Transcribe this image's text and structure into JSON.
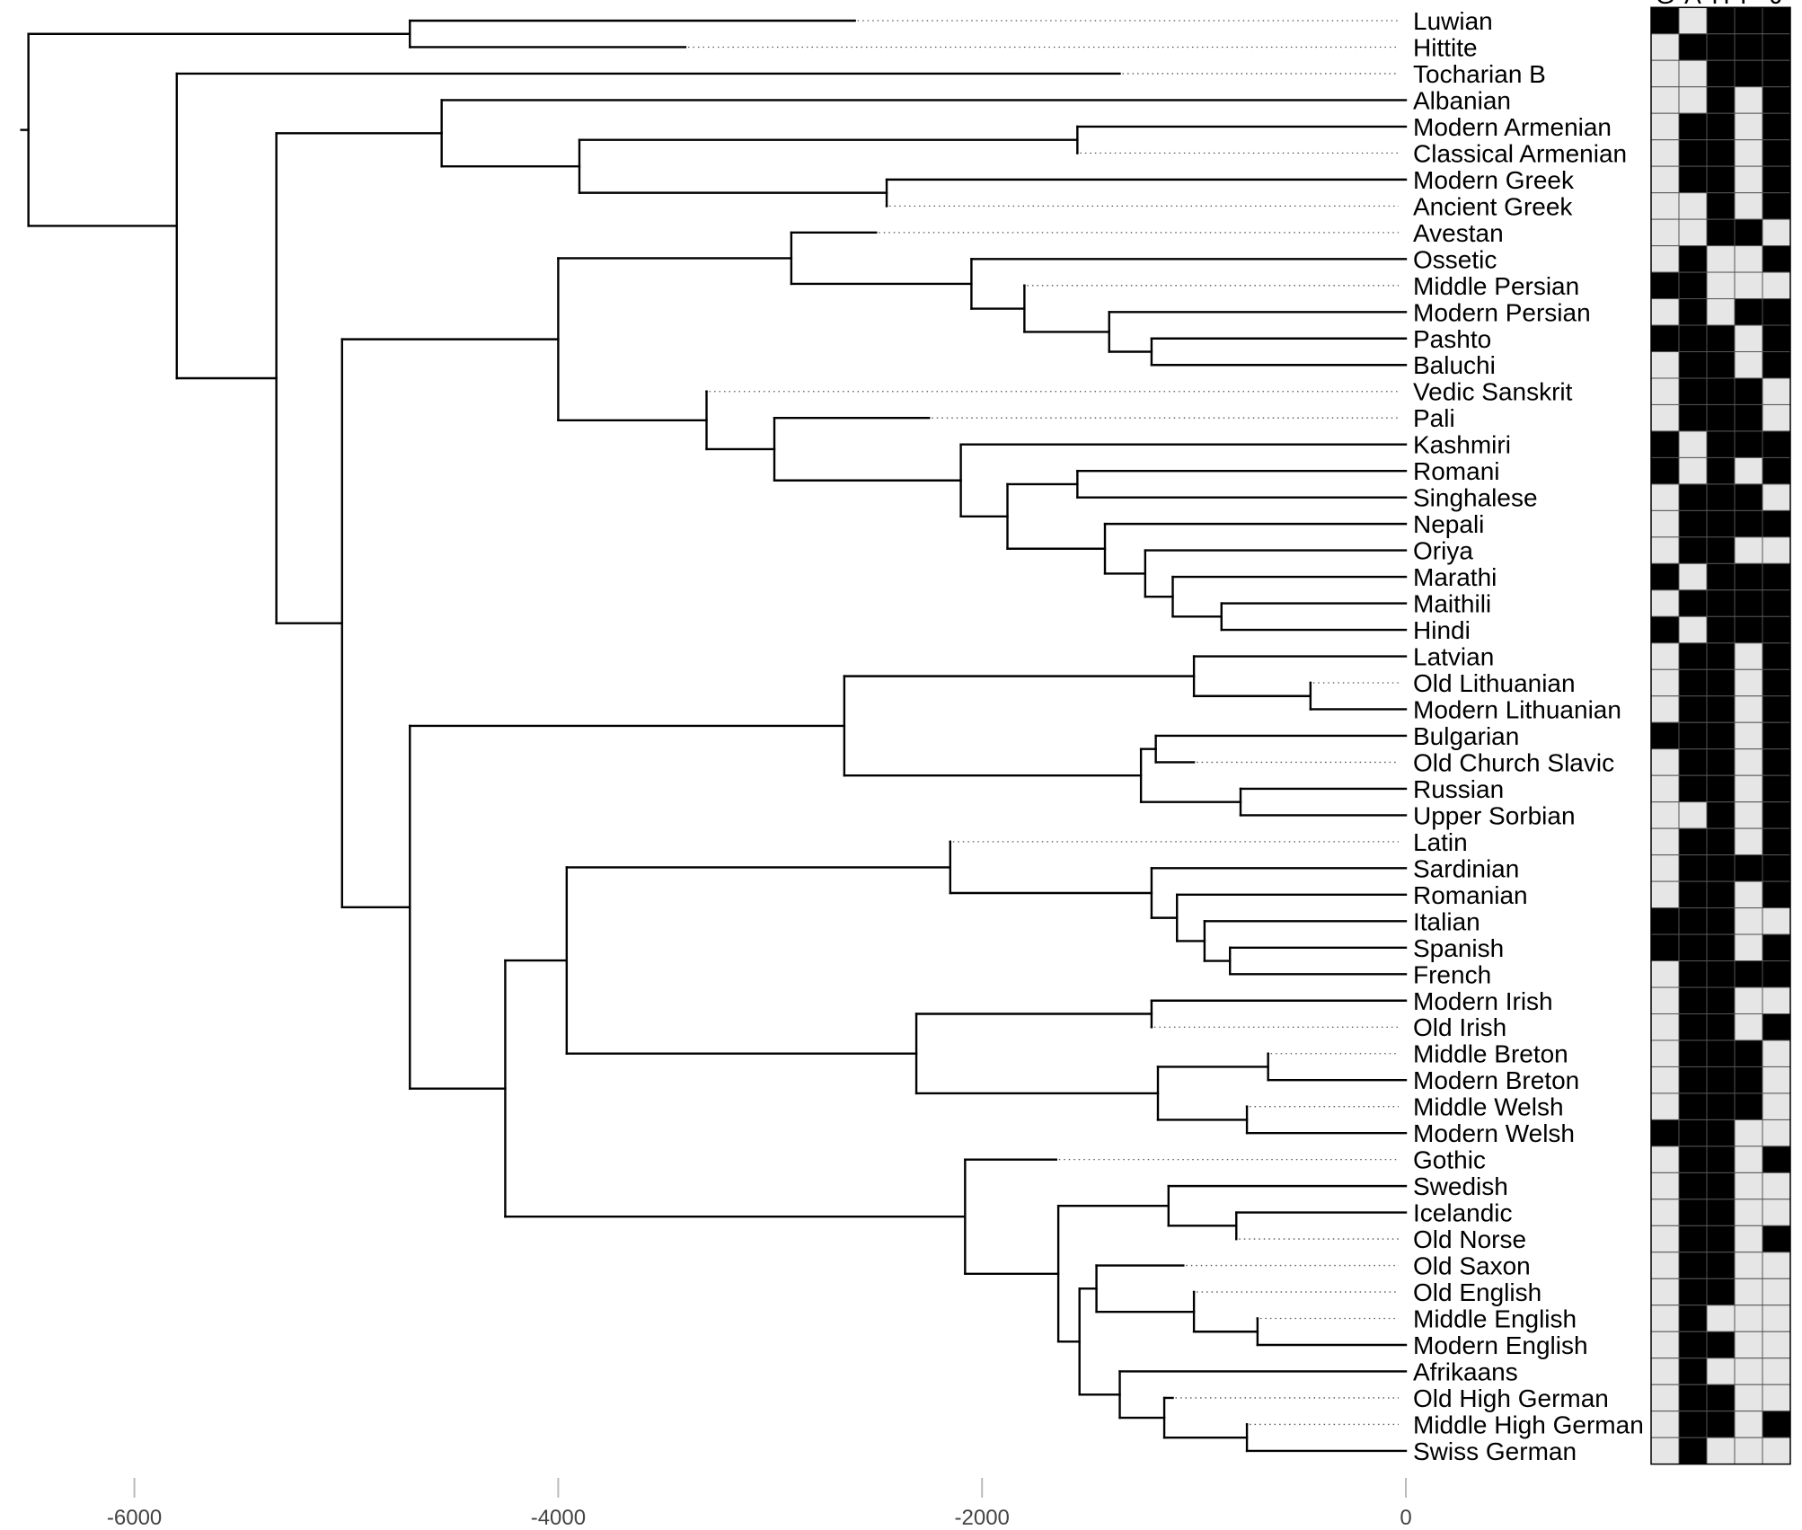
{
  "chart_data": {
    "type": "tree",
    "description_axis": "time before present (years)",
    "x_ticks": [
      -6000,
      -4000,
      -2000,
      0
    ],
    "x_tick_labels": [
      "-6000",
      "-4000",
      "-2000",
      "0"
    ],
    "xlim": [
      -6600,
      0
    ],
    "grid_header_letters": [
      "G",
      "A",
      "H",
      "P",
      "J"
    ],
    "colors": {
      "present": "#000000",
      "absent": "#e6e6e6",
      "tree": "#000000",
      "leader": "#555555"
    },
    "leaves": [
      {
        "name": "Luwian",
        "tip": -2600,
        "cells": [
          1,
          0,
          1,
          1,
          1
        ]
      },
      {
        "name": "Hittite",
        "tip": -3400,
        "cells": [
          0,
          1,
          1,
          1,
          1
        ]
      },
      {
        "name": "Tocharian B",
        "tip": -1350,
        "cells": [
          0,
          0,
          1,
          1,
          1
        ]
      },
      {
        "name": "Albanian",
        "tip": 0,
        "cells": [
          0,
          0,
          1,
          0,
          1
        ]
      },
      {
        "name": "Modern Armenian",
        "tip": 0,
        "cells": [
          0,
          1,
          1,
          0,
          1
        ]
      },
      {
        "name": "Classical Armenian",
        "tip": -1550,
        "cells": [
          0,
          1,
          1,
          0,
          1
        ]
      },
      {
        "name": "Modern Greek",
        "tip": 0,
        "cells": [
          0,
          1,
          1,
          0,
          1
        ]
      },
      {
        "name": "Ancient Greek",
        "tip": -2450,
        "cells": [
          0,
          0,
          1,
          0,
          1
        ]
      },
      {
        "name": "Avestan",
        "tip": -2500,
        "cells": [
          0,
          0,
          1,
          1,
          0
        ]
      },
      {
        "name": "Ossetic",
        "tip": 0,
        "cells": [
          0,
          1,
          0,
          0,
          1
        ]
      },
      {
        "name": "Middle Persian",
        "tip": -1800,
        "cells": [
          1,
          1,
          0,
          0,
          0
        ]
      },
      {
        "name": "Modern Persian",
        "tip": 0,
        "cells": [
          0,
          1,
          0,
          1,
          1
        ]
      },
      {
        "name": "Pashto",
        "tip": 0,
        "cells": [
          1,
          1,
          1,
          0,
          1
        ]
      },
      {
        "name": "Baluchi",
        "tip": 0,
        "cells": [
          0,
          1,
          1,
          0,
          1
        ]
      },
      {
        "name": "Vedic Sanskrit",
        "tip": -3300,
        "cells": [
          0,
          1,
          1,
          1,
          0
        ]
      },
      {
        "name": "Pali",
        "tip": -2250,
        "cells": [
          0,
          1,
          1,
          1,
          0
        ]
      },
      {
        "name": "Kashmiri",
        "tip": 0,
        "cells": [
          1,
          0,
          1,
          1,
          1
        ]
      },
      {
        "name": "Romani",
        "tip": 0,
        "cells": [
          1,
          0,
          1,
          0,
          1
        ]
      },
      {
        "name": "Singhalese",
        "tip": 0,
        "cells": [
          0,
          1,
          1,
          1,
          0
        ]
      },
      {
        "name": "Nepali",
        "tip": 0,
        "cells": [
          0,
          1,
          1,
          1,
          1
        ]
      },
      {
        "name": "Oriya",
        "tip": 0,
        "cells": [
          0,
          1,
          1,
          0,
          0
        ]
      },
      {
        "name": "Marathi",
        "tip": 0,
        "cells": [
          1,
          0,
          1,
          1,
          1
        ]
      },
      {
        "name": "Maithili",
        "tip": 0,
        "cells": [
          0,
          1,
          1,
          1,
          1
        ]
      },
      {
        "name": "Hindi",
        "tip": 0,
        "cells": [
          1,
          0,
          1,
          1,
          1
        ]
      },
      {
        "name": "Latvian",
        "tip": 0,
        "cells": [
          0,
          1,
          1,
          0,
          1
        ]
      },
      {
        "name": "Old Lithuanian",
        "tip": -450,
        "cells": [
          0,
          1,
          1,
          0,
          1
        ]
      },
      {
        "name": "Modern Lithuanian",
        "tip": 0,
        "cells": [
          0,
          1,
          1,
          0,
          1
        ]
      },
      {
        "name": "Bulgarian",
        "tip": 0,
        "cells": [
          1,
          1,
          1,
          0,
          1
        ]
      },
      {
        "name": "Old Church Slavic",
        "tip": -1000,
        "cells": [
          0,
          1,
          1,
          0,
          1
        ]
      },
      {
        "name": "Russian",
        "tip": 0,
        "cells": [
          0,
          1,
          1,
          0,
          1
        ]
      },
      {
        "name": "Upper Sorbian",
        "tip": 0,
        "cells": [
          0,
          0,
          1,
          0,
          1
        ]
      },
      {
        "name": "Latin",
        "tip": -2150,
        "cells": [
          0,
          1,
          1,
          0,
          1
        ]
      },
      {
        "name": "Sardinian",
        "tip": 0,
        "cells": [
          0,
          1,
          1,
          1,
          1
        ]
      },
      {
        "name": "Romanian",
        "tip": 0,
        "cells": [
          0,
          1,
          1,
          0,
          1
        ]
      },
      {
        "name": "Italian",
        "tip": 0,
        "cells": [
          1,
          1,
          1,
          0,
          0
        ]
      },
      {
        "name": "Spanish",
        "tip": 0,
        "cells": [
          1,
          1,
          1,
          0,
          1
        ]
      },
      {
        "name": "French",
        "tip": 0,
        "cells": [
          0,
          1,
          1,
          1,
          1
        ]
      },
      {
        "name": "Modern Irish",
        "tip": 0,
        "cells": [
          0,
          1,
          1,
          0,
          0
        ]
      },
      {
        "name": "Old Irish",
        "tip": -1200,
        "cells": [
          0,
          1,
          1,
          0,
          1
        ]
      },
      {
        "name": "Middle Breton",
        "tip": -650,
        "cells": [
          0,
          1,
          1,
          1,
          0
        ]
      },
      {
        "name": "Modern Breton",
        "tip": 0,
        "cells": [
          0,
          1,
          1,
          1,
          0
        ]
      },
      {
        "name": "Middle Welsh",
        "tip": -750,
        "cells": [
          0,
          1,
          1,
          1,
          0
        ]
      },
      {
        "name": "Modern Welsh",
        "tip": 0,
        "cells": [
          1,
          1,
          1,
          0,
          0
        ]
      },
      {
        "name": "Gothic",
        "tip": -1650,
        "cells": [
          0,
          1,
          1,
          0,
          1
        ]
      },
      {
        "name": "Swedish",
        "tip": 0,
        "cells": [
          0,
          1,
          1,
          0,
          0
        ]
      },
      {
        "name": "Icelandic",
        "tip": 0,
        "cells": [
          0,
          1,
          1,
          0,
          0
        ]
      },
      {
        "name": "Old Norse",
        "tip": -800,
        "cells": [
          0,
          1,
          1,
          0,
          1
        ]
      },
      {
        "name": "Old Saxon",
        "tip": -1050,
        "cells": [
          0,
          1,
          1,
          0,
          0
        ]
      },
      {
        "name": "Old English",
        "tip": -1000,
        "cells": [
          0,
          1,
          1,
          0,
          0
        ]
      },
      {
        "name": "Middle English",
        "tip": -700,
        "cells": [
          0,
          1,
          0,
          0,
          0
        ]
      },
      {
        "name": "Modern English",
        "tip": 0,
        "cells": [
          0,
          1,
          1,
          0,
          0
        ]
      },
      {
        "name": "Afrikaans",
        "tip": 0,
        "cells": [
          0,
          1,
          0,
          0,
          0
        ]
      },
      {
        "name": "Old High German",
        "tip": -1100,
        "cells": [
          0,
          1,
          1,
          0,
          0
        ]
      },
      {
        "name": "Middle High German",
        "tip": -750,
        "cells": [
          0,
          1,
          1,
          0,
          1
        ]
      },
      {
        "name": "Swiss German",
        "tip": 0,
        "cells": [
          0,
          1,
          0,
          0,
          0
        ]
      }
    ],
    "nodes": [
      {
        "id": "root",
        "age": -6500,
        "children": [
          "anat",
          "rest"
        ]
      },
      {
        "id": "anat",
        "age": -4700,
        "children": [
          "L:Luwian",
          "L:Hittite"
        ]
      },
      {
        "id": "rest",
        "age": -5800,
        "children": [
          "L:Tocharian B",
          "core"
        ]
      },
      {
        "id": "core",
        "age": -5330,
        "children": [
          "balk",
          "big"
        ]
      },
      {
        "id": "balk",
        "age": -4550,
        "children": [
          "L:Albanian",
          "armgr"
        ]
      },
      {
        "id": "armgr",
        "age": -3900,
        "children": [
          "arm",
          "gre"
        ]
      },
      {
        "id": "arm",
        "age": -1550,
        "children": [
          "L:Modern Armenian",
          "L:Classical Armenian"
        ]
      },
      {
        "id": "gre",
        "age": -2450,
        "children": [
          "L:Modern Greek",
          "L:Ancient Greek"
        ]
      },
      {
        "id": "big",
        "age": -5020,
        "children": [
          "indoir",
          "europe"
        ]
      },
      {
        "id": "indoir",
        "age": -4000,
        "children": [
          "iran",
          "indic"
        ]
      },
      {
        "id": "iran",
        "age": -2900,
        "children": [
          "L:Avestan",
          "iran2"
        ]
      },
      {
        "id": "iran2",
        "age": -2050,
        "children": [
          "L:Ossetic",
          "iran3"
        ]
      },
      {
        "id": "iran3",
        "age": -1800,
        "children": [
          "L:Middle Persian",
          "iran4"
        ]
      },
      {
        "id": "iran4",
        "age": -1400,
        "children": [
          "L:Modern Persian",
          "pabal"
        ]
      },
      {
        "id": "pabal",
        "age": -1200,
        "children": [
          "L:Pashto",
          "L:Baluchi"
        ]
      },
      {
        "id": "indic",
        "age": -3300,
        "children": [
          "L:Vedic Sanskrit",
          "ind2"
        ]
      },
      {
        "id": "ind2",
        "age": -2980,
        "children": [
          "L:Pali",
          "ind3"
        ]
      },
      {
        "id": "ind3",
        "age": -2100,
        "children": [
          "L:Kashmiri",
          "ind4"
        ]
      },
      {
        "id": "ind4",
        "age": -1880,
        "children": [
          "romsin",
          "ind5"
        ]
      },
      {
        "id": "romsin",
        "age": -1550,
        "children": [
          "L:Romani",
          "L:Singhalese"
        ]
      },
      {
        "id": "ind5",
        "age": -1420,
        "children": [
          "L:Nepali",
          "ind6"
        ]
      },
      {
        "id": "ind6",
        "age": -1230,
        "children": [
          "L:Oriya",
          "ind7"
        ]
      },
      {
        "id": "ind7",
        "age": -1100,
        "children": [
          "L:Marathi",
          "ind8"
        ]
      },
      {
        "id": "ind8",
        "age": -870,
        "children": [
          "L:Maithili",
          "L:Hindi"
        ]
      },
      {
        "id": "europe",
        "age": -4700,
        "children": [
          "balsla",
          "wes"
        ]
      },
      {
        "id": "balsla",
        "age": -2650,
        "children": [
          "balt",
          "slav"
        ]
      },
      {
        "id": "balt",
        "age": -1000,
        "children": [
          "L:Latvian",
          "lith"
        ]
      },
      {
        "id": "lith",
        "age": -450,
        "children": [
          "L:Old Lithuanian",
          "L:Modern Lithuanian"
        ]
      },
      {
        "id": "slav",
        "age": -1250,
        "children": [
          "bulocs",
          "rusorb"
        ]
      },
      {
        "id": "bulocs",
        "age": -1180,
        "children": [
          "L:Bulgarian",
          "L:Old Church Slavic"
        ]
      },
      {
        "id": "rusorb",
        "age": -780,
        "children": [
          "L:Russian",
          "L:Upper Sorbian"
        ]
      },
      {
        "id": "wes",
        "age": -4250,
        "children": [
          "itce",
          "germ"
        ]
      },
      {
        "id": "itce",
        "age": -3960,
        "children": [
          "ital",
          "celt"
        ]
      },
      {
        "id": "ital",
        "age": -2150,
        "children": [
          "L:Latin",
          "rom"
        ]
      },
      {
        "id": "rom",
        "age": -1200,
        "children": [
          "L:Sardinian",
          "rom2"
        ]
      },
      {
        "id": "rom2",
        "age": -1080,
        "children": [
          "L:Romanian",
          "rom3"
        ]
      },
      {
        "id": "rom3",
        "age": -950,
        "children": [
          "L:Italian",
          "spfr"
        ]
      },
      {
        "id": "spfr",
        "age": -830,
        "children": [
          "L:Spanish",
          "L:French"
        ]
      },
      {
        "id": "celt",
        "age": -2310,
        "children": [
          "ir",
          "bry"
        ]
      },
      {
        "id": "ir",
        "age": -1200,
        "children": [
          "L:Modern Irish",
          "L:Old Irish"
        ]
      },
      {
        "id": "bry",
        "age": -1170,
        "children": [
          "bre",
          "wel"
        ]
      },
      {
        "id": "bre",
        "age": -650,
        "children": [
          "L:Middle Breton",
          "L:Modern Breton"
        ]
      },
      {
        "id": "wel",
        "age": -750,
        "children": [
          "L:Middle Welsh",
          "L:Modern Welsh"
        ]
      },
      {
        "id": "germ",
        "age": -2080,
        "children": [
          "L:Gothic",
          "nwg"
        ]
      },
      {
        "id": "nwg",
        "age": -1640,
        "children": [
          "nord",
          "wgm"
        ]
      },
      {
        "id": "nord",
        "age": -1120,
        "children": [
          "L:Swedish",
          "icon"
        ]
      },
      {
        "id": "icon",
        "age": -800,
        "children": [
          "L:Icelandic",
          "L:Old Norse"
        ]
      },
      {
        "id": "wgm",
        "age": -1540,
        "children": [
          "saxeng",
          "hgm"
        ]
      },
      {
        "id": "saxeng",
        "age": -1460,
        "children": [
          "L:Old Saxon",
          "eng"
        ]
      },
      {
        "id": "eng",
        "age": -1000,
        "children": [
          "L:Old English",
          "eng2"
        ]
      },
      {
        "id": "eng2",
        "age": -700,
        "children": [
          "L:Middle English",
          "L:Modern English"
        ]
      },
      {
        "id": "hgm",
        "age": -1350,
        "children": [
          "L:Afrikaans",
          "hg2"
        ]
      },
      {
        "id": "hg2",
        "age": -1140,
        "children": [
          "L:Old High German",
          "hg3"
        ]
      },
      {
        "id": "hg3",
        "age": -750,
        "children": [
          "L:Middle High German",
          "L:Swiss German"
        ]
      }
    ]
  }
}
